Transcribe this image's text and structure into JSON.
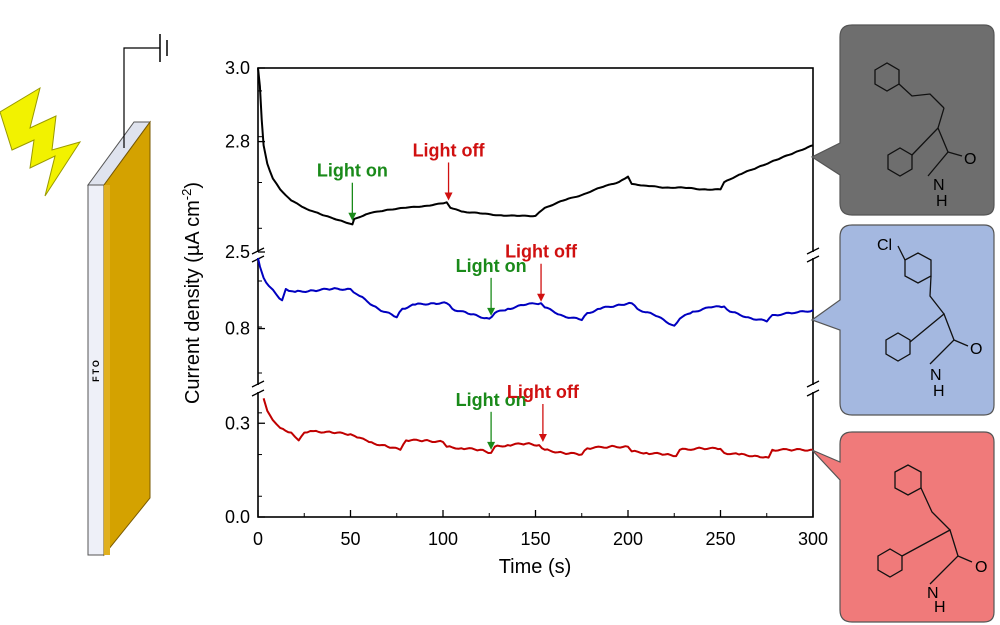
{
  "chart_data": {
    "type": "line",
    "xlabel": "Time (s)",
    "ylabel": "Current density (µA cm",
    "ylabel_sup": "-2",
    "ylabel_close": ")",
    "xlim": [
      0,
      300
    ],
    "xticks": [
      "0",
      "50",
      "100",
      "150",
      "200",
      "250",
      "300"
    ],
    "panels": [
      {
        "ylim": [
          2.5,
          3.0
        ],
        "yticks": [
          [
            "3.0",
            3.0
          ],
          [
            "2.8",
            2.8
          ],
          [
            "2.5",
            2.5
          ]
        ]
      },
      {
        "ylim": [
          0.6,
          1.05
        ],
        "yticks": [
          [
            "0.8",
            0.8
          ]
        ]
      },
      {
        "ylim": [
          0.0,
          0.4
        ],
        "yticks": [
          [
            "0.3",
            0.3
          ],
          [
            "0.0",
            0.0
          ]
        ]
      }
    ],
    "series": [
      {
        "color": "#000000",
        "panel": 0,
        "x": [
          0,
          1,
          2,
          3,
          5,
          8,
          12,
          18,
          25,
          35,
          45,
          51,
          52,
          60,
          70,
          80,
          90,
          100,
          102,
          104,
          110,
          120,
          130,
          140,
          150,
          152,
          155,
          165,
          175,
          185,
          195,
          200,
          202,
          210,
          220,
          230,
          240,
          250,
          252,
          260,
          270,
          280,
          290,
          300
        ],
        "y": [
          3.0,
          2.95,
          2.86,
          2.79,
          2.74,
          2.7,
          2.67,
          2.64,
          2.62,
          2.6,
          2.585,
          2.575,
          2.59,
          2.605,
          2.615,
          2.62,
          2.625,
          2.632,
          2.635,
          2.62,
          2.61,
          2.605,
          2.6,
          2.598,
          2.598,
          2.608,
          2.62,
          2.64,
          2.655,
          2.675,
          2.69,
          2.705,
          2.685,
          2.68,
          2.675,
          2.675,
          2.67,
          2.67,
          2.69,
          2.71,
          2.73,
          2.75,
          2.77,
          2.79
        ]
      },
      {
        "color": "#0000c0",
        "panel": 1,
        "x": [
          0,
          1,
          3,
          6,
          10,
          13,
          15,
          20,
          30,
          40,
          50,
          55,
          65,
          75,
          78,
          85,
          95,
          102,
          105,
          115,
          125,
          128,
          135,
          145,
          153,
          155,
          165,
          175,
          178,
          185,
          195,
          202,
          205,
          215,
          225,
          228,
          235,
          245,
          252,
          255,
          265,
          275,
          278,
          290,
          300
        ],
        "y": [
          1.05,
          1.02,
          0.98,
          0.95,
          0.92,
          0.9,
          0.94,
          0.93,
          0.935,
          0.94,
          0.94,
          0.915,
          0.87,
          0.84,
          0.87,
          0.885,
          0.89,
          0.89,
          0.87,
          0.85,
          0.835,
          0.855,
          0.87,
          0.885,
          0.89,
          0.875,
          0.845,
          0.83,
          0.855,
          0.87,
          0.885,
          0.89,
          0.87,
          0.845,
          0.81,
          0.835,
          0.86,
          0.875,
          0.878,
          0.86,
          0.84,
          0.825,
          0.848,
          0.855,
          0.865
        ]
      },
      {
        "color": "#c00000",
        "panel": 2,
        "x": [
          3,
          5,
          8,
          12,
          18,
          22,
          25,
          30,
          40,
          50,
          52,
          60,
          70,
          77,
          80,
          90,
          100,
          102,
          110,
          120,
          126,
          128,
          135,
          145,
          152,
          155,
          165,
          175,
          178,
          190,
          200,
          202,
          210,
          220,
          226,
          228,
          240,
          250,
          252,
          260,
          270,
          276,
          278,
          290,
          300
        ],
        "y": [
          0.38,
          0.34,
          0.31,
          0.285,
          0.27,
          0.245,
          0.27,
          0.275,
          0.27,
          0.265,
          0.26,
          0.24,
          0.225,
          0.215,
          0.245,
          0.245,
          0.24,
          0.225,
          0.22,
          0.215,
          0.205,
          0.225,
          0.23,
          0.235,
          0.23,
          0.215,
          0.205,
          0.2,
          0.22,
          0.225,
          0.225,
          0.21,
          0.205,
          0.2,
          0.195,
          0.215,
          0.22,
          0.218,
          0.205,
          0.2,
          0.195,
          0.19,
          0.215,
          0.215,
          0.215
        ]
      }
    ],
    "annotations": [
      {
        "text": "Light on",
        "color": "#1a8a1a",
        "panel": 0,
        "arrow_x": 51,
        "arrow_y": 2.585
      },
      {
        "text": "Light off",
        "color": "#d01010",
        "panel": 0,
        "arrow_x": 103,
        "arrow_y": 2.64
      },
      {
        "text": "Light on",
        "color": "#1a8a1a",
        "panel": 1,
        "arrow_x": 126,
        "arrow_y": 0.845
      },
      {
        "text": "Light off",
        "color": "#d01010",
        "panel": 1,
        "arrow_x": 153,
        "arrow_y": 0.895
      },
      {
        "text": "Light on",
        "color": "#1a8a1a",
        "panel": 2,
        "arrow_x": 126,
        "arrow_y": 0.215
      },
      {
        "text": "Light off",
        "color": "#d01010",
        "panel": 2,
        "arrow_x": 154,
        "arrow_y": 0.24
      }
    ]
  },
  "electrode": {
    "label": "FTO",
    "bolt_color": "#f2f200",
    "film_color": "#d4a200"
  },
  "molecules": [
    {
      "box_color": "#6e6e6e",
      "labels": [
        "O",
        "N",
        "H"
      ]
    },
    {
      "box_color": "#a4b8e0",
      "labels": [
        "Cl",
        "O",
        "N",
        "H"
      ]
    },
    {
      "box_color": "#f07a7a",
      "labels": [
        "O",
        "N",
        "H"
      ]
    }
  ]
}
